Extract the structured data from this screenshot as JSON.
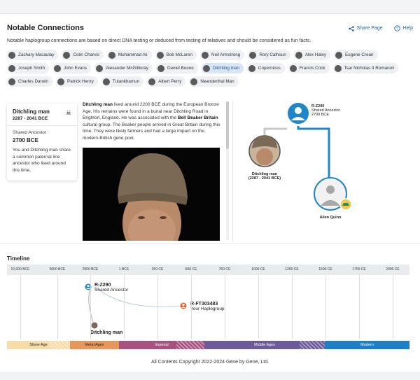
{
  "header": {
    "title": "Notable Connections",
    "share_label": "Share Page",
    "help_label": "Help",
    "subtitle": "Notable haplogroup connections are based on direct DNA testing or deduced from testing of relatives and should be considered as fun facts."
  },
  "people": [
    {
      "name": "Zachary Macaulay"
    },
    {
      "name": "Colin Charvis"
    },
    {
      "name": "Muhammad Ali"
    },
    {
      "name": "Bob McLaren"
    },
    {
      "name": "Neil Armstrong"
    },
    {
      "name": "Rory Calhoun"
    },
    {
      "name": "Alex Haley"
    },
    {
      "name": "Eugene Crean"
    },
    {
      "name": "Joseph Smith"
    },
    {
      "name": "John Evans"
    },
    {
      "name": "Alexander McGillivray"
    },
    {
      "name": "Daniel Boone"
    },
    {
      "name": "Ditchling man"
    },
    {
      "name": "Copernicus"
    },
    {
      "name": "Francis Crick"
    },
    {
      "name": "Tsar Nicholas II Romanov"
    },
    {
      "name": "Charles Darwin"
    },
    {
      "name": "Patrick Henry"
    },
    {
      "name": "Tutankhamun"
    },
    {
      "name": "Albert Perry"
    },
    {
      "name": "Neanderthal Man"
    }
  ],
  "selected_person": "Ditchling man",
  "card": {
    "name": "Ditchling man",
    "dates": "2287 - 2041 BCE",
    "ancestor_label": "Shared Ancestor",
    "ancestor_year": "2700 BCE",
    "description": "You and Ditchling man share a common paternal line ancestor who lived around this time."
  },
  "bio": {
    "name": "Ditchling man",
    "text1": " lived around 2200 BCE during the European Bronze Age. His remains were found in a burial near Ditchling Road in Brighton, England. He was associated with the ",
    "group": "Bell Beaker Britain",
    "text2": " cultural group. The Beaker people arrived in Great Britain during this time. They were likely farmers and had a large impact on the modern-British gene pool."
  },
  "tree": {
    "ancestor_haplogroup": "R-Z290",
    "ancestor_label": "Shared Ancestor",
    "ancestor_year": "2700 BCE",
    "left_name": "Ditchling man",
    "left_dates": "(2287 - 2041 BCE)",
    "right_name": "Allen Quinn"
  },
  "timeline": {
    "title": "Timeline",
    "ticks": [
      "10,000 BCE",
      "5000 BCE",
      "2500 BCE",
      "1 BCE",
      "250 CE",
      "500 CE",
      "750 CE",
      "1000 CE",
      "1250 CE",
      "1500 CE",
      "1750 CE",
      "2000 CE"
    ],
    "markers": {
      "ancestor_haplogroup": "R-Z290",
      "ancestor_label": "Shared Ancestor",
      "your_haplogroup": "R-FT303483",
      "your_label": "Your Haplogroup",
      "person_name": "Ditchling man"
    },
    "eras": [
      {
        "name": "Stone Age",
        "color": "#f5dca8"
      },
      {
        "name": "Metal Ages",
        "color": "#e8965a"
      },
      {
        "name": "Imperial",
        "color": "#a8537f"
      },
      {
        "name": "Middle Ages",
        "color": "#6d5a9a"
      },
      {
        "name": "Modern",
        "color": "#1f7fc4"
      }
    ]
  },
  "footer": {
    "copyright": "All Contents Copyright 2022-2024 Gene by Gene, Ltd."
  },
  "colors": {
    "accent": "#1e5fa8",
    "line_blue": "#1f86c8",
    "line_gray": "#c8c8c8",
    "marker_orange": "#e8642c"
  }
}
